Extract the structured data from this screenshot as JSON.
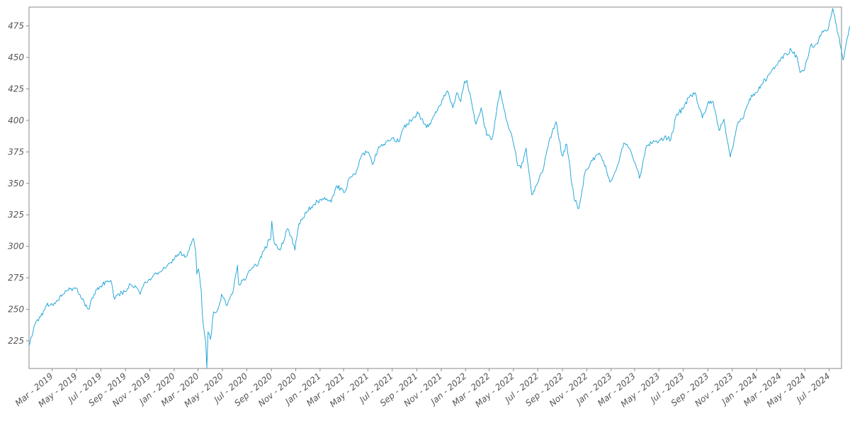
{
  "chart_data": {
    "type": "line",
    "title": "",
    "xlabel": "",
    "ylabel": "",
    "grid": false,
    "ylim": [
      203,
      490
    ],
    "xlim": [
      "2019-01-02",
      "2024-08-01"
    ],
    "y_ticks": [
      225,
      250,
      275,
      300,
      325,
      350,
      375,
      400,
      425,
      450,
      475
    ],
    "x_ticks": [
      {
        "label": "Mar - 2019",
        "date": "2019-03-01"
      },
      {
        "label": "May - 2019",
        "date": "2019-05-01"
      },
      {
        "label": "Jul - 2019",
        "date": "2019-07-01"
      },
      {
        "label": "Sep - 2019",
        "date": "2019-09-01"
      },
      {
        "label": "Nov - 2019",
        "date": "2019-11-01"
      },
      {
        "label": "Jan - 2020",
        "date": "2020-01-01"
      },
      {
        "label": "Mar - 2020",
        "date": "2020-03-01"
      },
      {
        "label": "May - 2020",
        "date": "2020-05-01"
      },
      {
        "label": "Jul - 2020",
        "date": "2020-07-01"
      },
      {
        "label": "Sep - 2020",
        "date": "2020-09-01"
      },
      {
        "label": "Nov - 2020",
        "date": "2020-11-01"
      },
      {
        "label": "Jan - 2021",
        "date": "2021-01-01"
      },
      {
        "label": "Mar - 2021",
        "date": "2021-03-01"
      },
      {
        "label": "May - 2021",
        "date": "2021-05-01"
      },
      {
        "label": "Jul - 2021",
        "date": "2021-07-01"
      },
      {
        "label": "Sep - 2021",
        "date": "2021-09-01"
      },
      {
        "label": "Nov - 2021",
        "date": "2021-11-01"
      },
      {
        "label": "Jan - 2022",
        "date": "2022-01-01"
      },
      {
        "label": "Mar - 2022",
        "date": "2022-03-01"
      },
      {
        "label": "May - 2022",
        "date": "2022-05-01"
      },
      {
        "label": "Jul - 2022",
        "date": "2022-07-01"
      },
      {
        "label": "Sep - 2022",
        "date": "2022-09-01"
      },
      {
        "label": "Nov - 2022",
        "date": "2022-11-01"
      },
      {
        "label": "Jan - 2023",
        "date": "2023-01-01"
      },
      {
        "label": "Mar - 2023",
        "date": "2023-03-01"
      },
      {
        "label": "May - 2023",
        "date": "2023-05-01"
      },
      {
        "label": "Jul - 2023",
        "date": "2023-07-01"
      },
      {
        "label": "Sep - 2023",
        "date": "2023-09-01"
      },
      {
        "label": "Nov - 2023",
        "date": "2023-11-01"
      },
      {
        "label": "Jan - 2024",
        "date": "2024-01-01"
      },
      {
        "label": "Mar - 2024",
        "date": "2024-03-01"
      },
      {
        "label": "May - 2024",
        "date": "2024-05-01"
      },
      {
        "label": "Jul - 2024",
        "date": "2024-07-01"
      }
    ],
    "series": [
      {
        "color": "#29a8d8",
        "points": [
          [
            "2019-01-02",
            221
          ],
          [
            "2019-01-15",
            237
          ],
          [
            "2019-01-31",
            244
          ],
          [
            "2019-02-15",
            253
          ],
          [
            "2019-03-01",
            254
          ],
          [
            "2019-03-15",
            257
          ],
          [
            "2019-03-29",
            262
          ],
          [
            "2019-04-15",
            266
          ],
          [
            "2019-04-30",
            267
          ],
          [
            "2019-05-15",
            258
          ],
          [
            "2019-05-31",
            250
          ],
          [
            "2019-06-14",
            262
          ],
          [
            "2019-06-28",
            268
          ],
          [
            "2019-07-15",
            272
          ],
          [
            "2019-07-26",
            273
          ],
          [
            "2019-08-05",
            258
          ],
          [
            "2019-08-15",
            262
          ],
          [
            "2019-08-30",
            264
          ],
          [
            "2019-09-13",
            270
          ],
          [
            "2019-09-30",
            267
          ],
          [
            "2019-10-08",
            262
          ],
          [
            "2019-10-15",
            268
          ],
          [
            "2019-10-31",
            274
          ],
          [
            "2019-11-15",
            279
          ],
          [
            "2019-11-29",
            280
          ],
          [
            "2019-12-13",
            284
          ],
          [
            "2019-12-31",
            289
          ],
          [
            "2020-01-15",
            295
          ],
          [
            "2020-01-31",
            292
          ],
          [
            "2020-02-10",
            301
          ],
          [
            "2020-02-19",
            306
          ],
          [
            "2020-02-24",
            296
          ],
          [
            "2020-02-27",
            278
          ],
          [
            "2020-03-02",
            282
          ],
          [
            "2020-03-09",
            265
          ],
          [
            "2020-03-12",
            245
          ],
          [
            "2020-03-16",
            233
          ],
          [
            "2020-03-20",
            225
          ],
          [
            "2020-03-23",
            203
          ],
          [
            "2020-03-26",
            232
          ],
          [
            "2020-04-01",
            226
          ],
          [
            "2020-04-09",
            248
          ],
          [
            "2020-04-20",
            250
          ],
          [
            "2020-04-29",
            262
          ],
          [
            "2020-05-13",
            253
          ],
          [
            "2020-05-29",
            266
          ],
          [
            "2020-06-08",
            285
          ],
          [
            "2020-06-11",
            270
          ],
          [
            "2020-06-26",
            273
          ],
          [
            "2020-07-10",
            281
          ],
          [
            "2020-07-31",
            287
          ],
          [
            "2020-08-14",
            297
          ],
          [
            "2020-08-31",
            308
          ],
          [
            "2020-09-02",
            320
          ],
          [
            "2020-09-08",
            303
          ],
          [
            "2020-09-23",
            297
          ],
          [
            "2020-10-12",
            314
          ],
          [
            "2020-10-20",
            308
          ],
          [
            "2020-10-30",
            297
          ],
          [
            "2020-11-09",
            318
          ],
          [
            "2020-11-30",
            328
          ],
          [
            "2020-12-15",
            333
          ],
          [
            "2020-12-31",
            337
          ],
          [
            "2021-01-15",
            337
          ],
          [
            "2021-01-29",
            335
          ],
          [
            "2021-02-12",
            348
          ],
          [
            "2021-03-04",
            343
          ],
          [
            "2021-03-17",
            355
          ],
          [
            "2021-03-31",
            357
          ],
          [
            "2021-04-15",
            372
          ],
          [
            "2021-04-30",
            375
          ],
          [
            "2021-05-12",
            365
          ],
          [
            "2021-05-28",
            379
          ],
          [
            "2021-06-15",
            383
          ],
          [
            "2021-06-30",
            386
          ],
          [
            "2021-07-19",
            383
          ],
          [
            "2021-07-30",
            394
          ],
          [
            "2021-08-16",
            400
          ],
          [
            "2021-08-31",
            405
          ],
          [
            "2021-09-02",
            407
          ],
          [
            "2021-09-20",
            397
          ],
          [
            "2021-09-30",
            395
          ],
          [
            "2021-10-15",
            404
          ],
          [
            "2021-10-29",
            412
          ],
          [
            "2021-11-08",
            420
          ],
          [
            "2021-11-19",
            422
          ],
          [
            "2021-11-30",
            410
          ],
          [
            "2021-12-10",
            422
          ],
          [
            "2021-12-20",
            415
          ],
          [
            "2021-12-29",
            431
          ],
          [
            "2022-01-04",
            432
          ],
          [
            "2022-01-14",
            418
          ],
          [
            "2022-01-27",
            397
          ],
          [
            "2022-02-09",
            410
          ],
          [
            "2022-02-23",
            388
          ],
          [
            "2022-03-08",
            385
          ],
          [
            "2022-03-29",
            424
          ],
          [
            "2022-04-12",
            402
          ],
          [
            "2022-04-29",
            385
          ],
          [
            "2022-05-12",
            364
          ],
          [
            "2022-05-20",
            362
          ],
          [
            "2022-06-02",
            378
          ],
          [
            "2022-06-16",
            341
          ],
          [
            "2022-06-30",
            350
          ],
          [
            "2022-07-15",
            361
          ],
          [
            "2022-07-29",
            383
          ],
          [
            "2022-08-16",
            399
          ],
          [
            "2022-08-31",
            372
          ],
          [
            "2022-09-12",
            381
          ],
          [
            "2022-09-30",
            338
          ],
          [
            "2022-10-12",
            330
          ],
          [
            "2022-10-28",
            359
          ],
          [
            "2022-11-10",
            366
          ],
          [
            "2022-11-30",
            373
          ],
          [
            "2022-12-13",
            368
          ],
          [
            "2022-12-29",
            351
          ],
          [
            "2023-01-13",
            360
          ],
          [
            "2023-02-02",
            382
          ],
          [
            "2023-02-15",
            378
          ],
          [
            "2023-03-09",
            360
          ],
          [
            "2023-03-13",
            354
          ],
          [
            "2023-03-31",
            380
          ],
          [
            "2023-04-17",
            384
          ],
          [
            "2023-04-28",
            382
          ],
          [
            "2023-05-15",
            387
          ],
          [
            "2023-05-31",
            385
          ],
          [
            "2023-06-15",
            405
          ],
          [
            "2023-06-30",
            409
          ],
          [
            "2023-07-14",
            418
          ],
          [
            "2023-07-31",
            422
          ],
          [
            "2023-08-18",
            402
          ],
          [
            "2023-08-31",
            413
          ],
          [
            "2023-09-14",
            415
          ],
          [
            "2023-09-29",
            392
          ],
          [
            "2023-10-11",
            401
          ],
          [
            "2023-10-27",
            371
          ],
          [
            "2023-11-14",
            397
          ],
          [
            "2023-11-30",
            403
          ],
          [
            "2023-12-14",
            417
          ],
          [
            "2023-12-29",
            422
          ],
          [
            "2024-01-12",
            428
          ],
          [
            "2024-01-31",
            436
          ],
          [
            "2024-02-15",
            441
          ],
          [
            "2024-02-29",
            447
          ],
          [
            "2024-03-15",
            453
          ],
          [
            "2024-03-28",
            456
          ],
          [
            "2024-04-12",
            450
          ],
          [
            "2024-04-19",
            438
          ],
          [
            "2024-04-30",
            440
          ],
          [
            "2024-05-15",
            459
          ],
          [
            "2024-05-31",
            461
          ],
          [
            "2024-06-14",
            471
          ],
          [
            "2024-06-28",
            472
          ],
          [
            "2024-07-10",
            489
          ],
          [
            "2024-07-17",
            478
          ],
          [
            "2024-07-24",
            468
          ],
          [
            "2024-08-05",
            448
          ],
          [
            "2024-08-15",
            465
          ],
          [
            "2024-08-26",
            480
          ],
          [
            "2024-08-30",
            482
          ]
        ]
      }
    ]
  }
}
